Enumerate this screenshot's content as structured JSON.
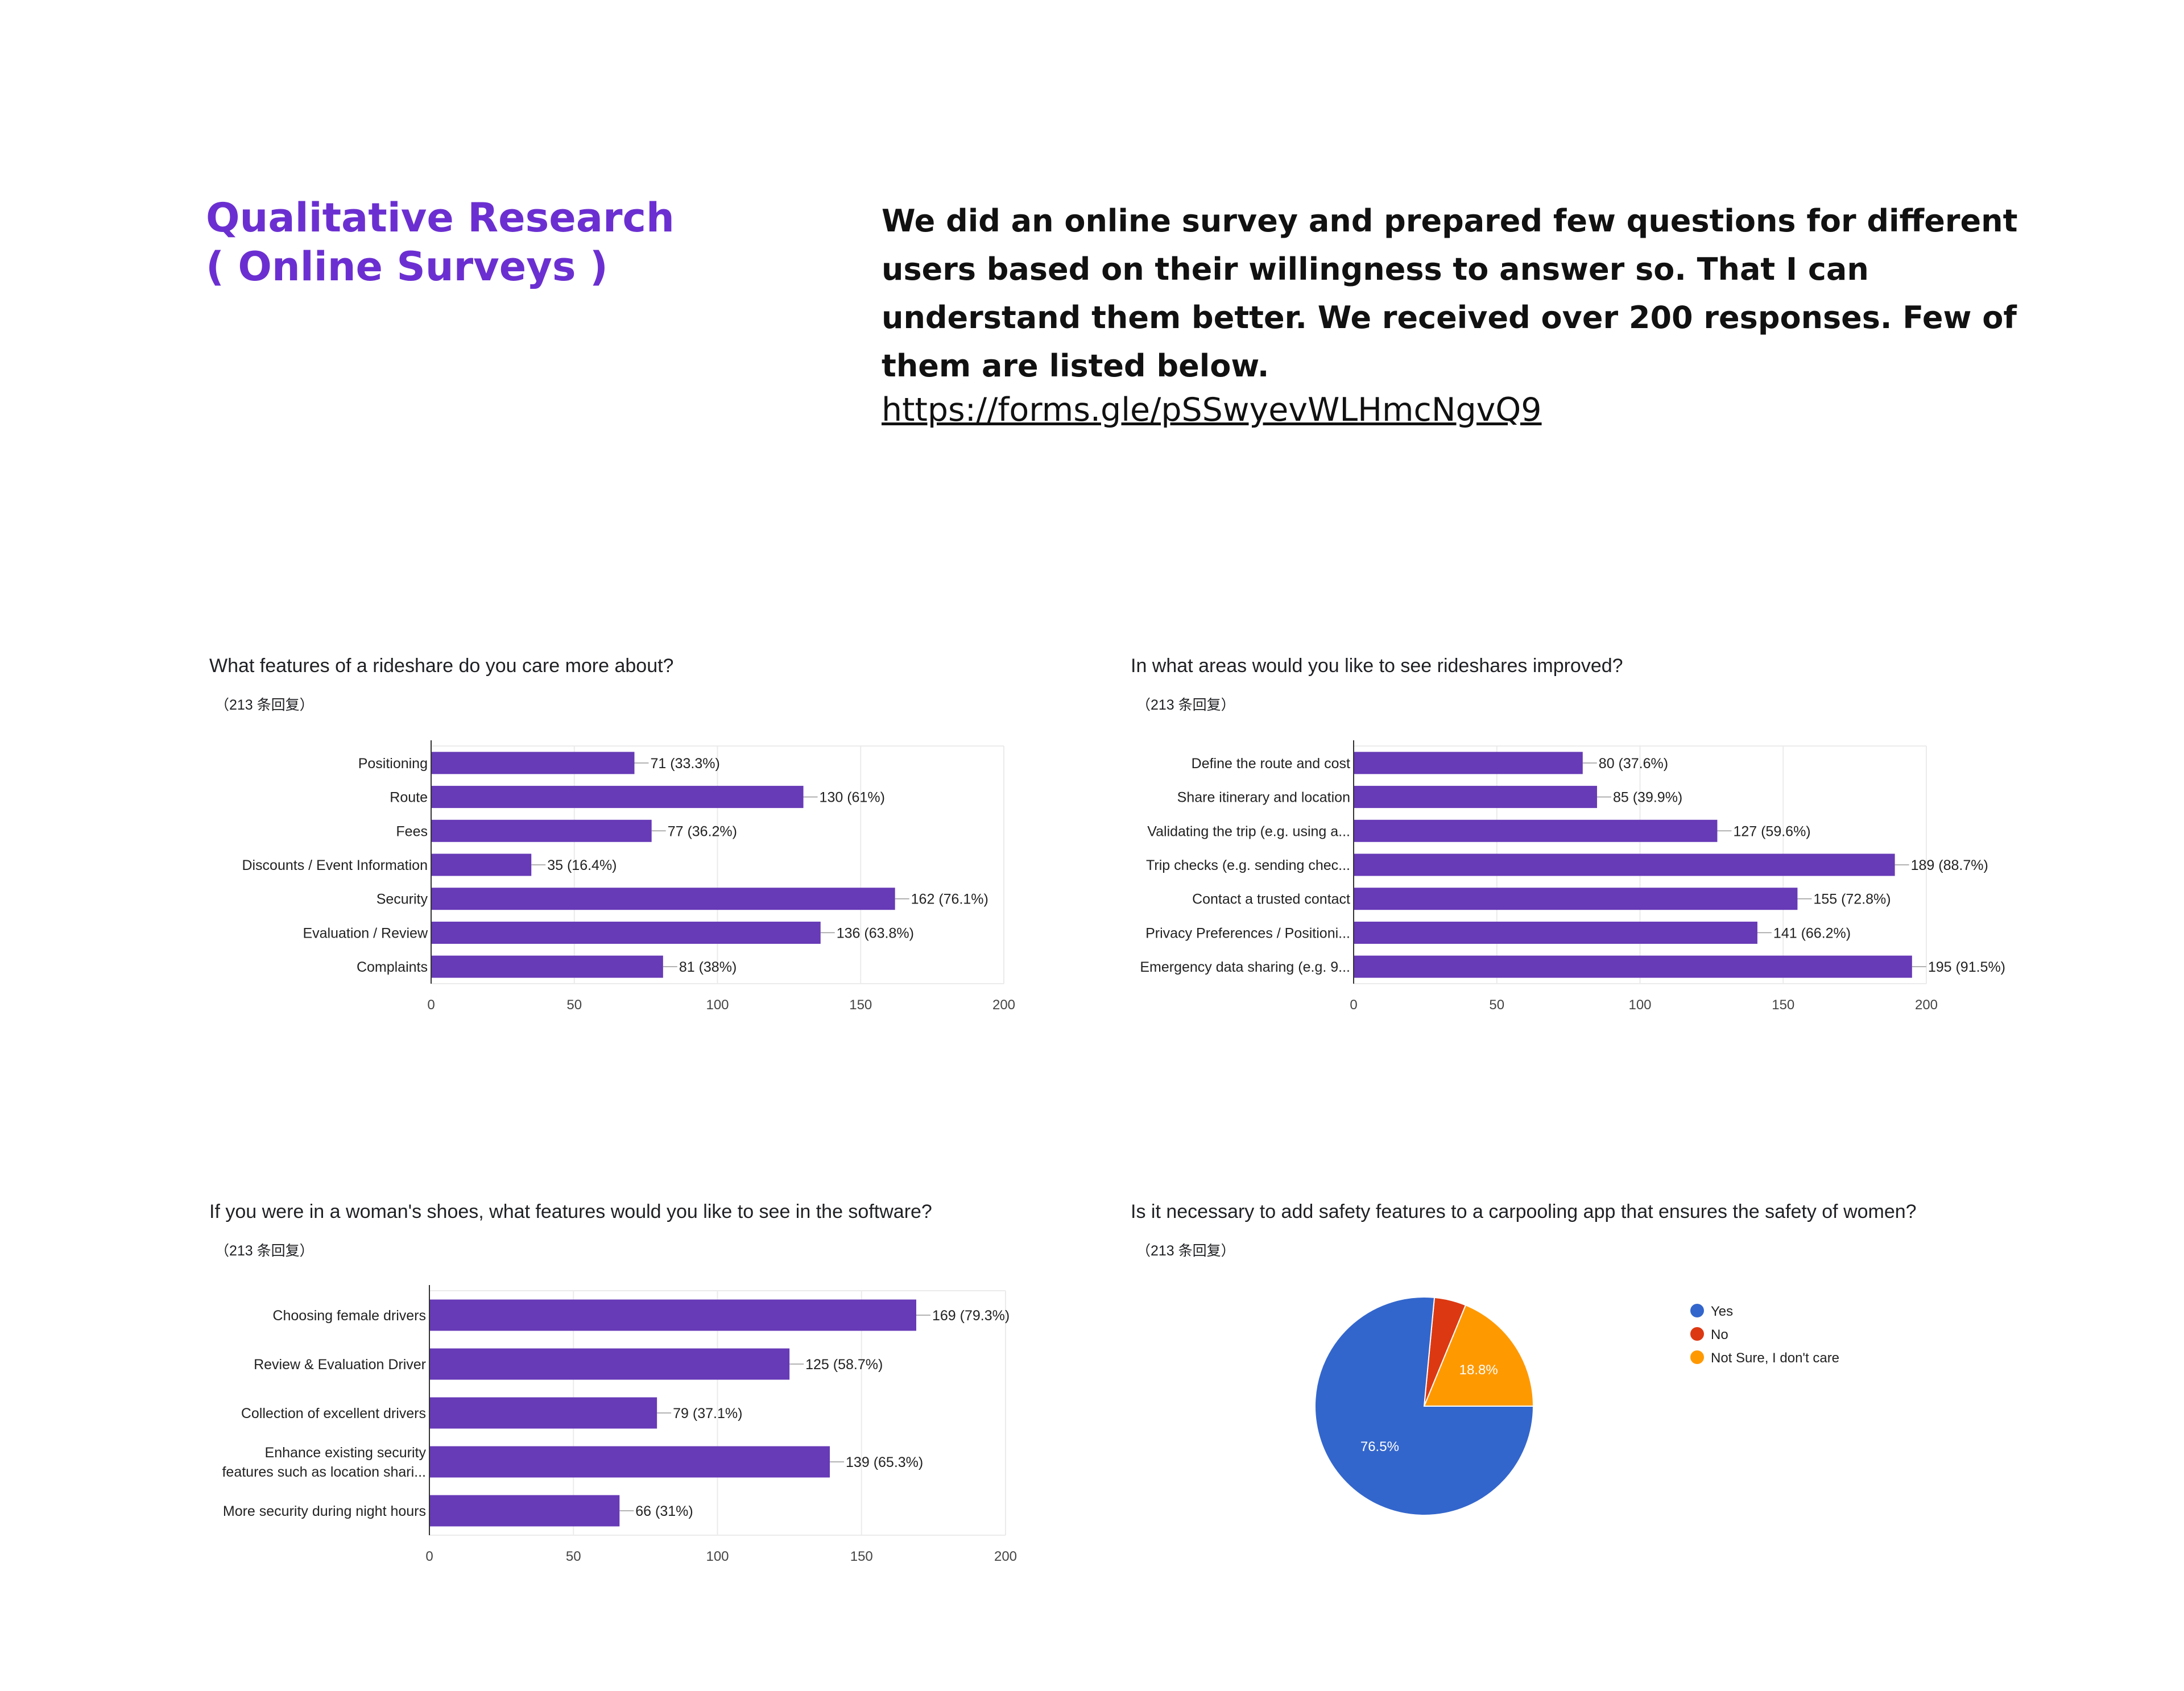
{
  "header": {
    "title_line1": "Qualitative Research",
    "title_line2": "( Online Surveys )",
    "intro": "We did an online survey and prepared few questions for different users based on their willingness to answer so. That I can understand them better. We received over 200 responses. Few of them are listed below.",
    "link": "https://forms.gle/pSSwyevWLHmcNgvQ9"
  },
  "colors": {
    "title": "#6B2FD1",
    "bar": "#673AB7",
    "pie_yes": "#3366CC",
    "pie_no": "#DC3912",
    "pie_not_sure": "#FF9900"
  },
  "chart_data": [
    {
      "type": "bar",
      "question": "What features of a rideshare do you care more about?",
      "responses": "（213 条回复）",
      "categories": [
        "Positioning",
        "Route",
        "Fees",
        "Discounts / Event Information",
        "Security",
        "Evaluation / Review",
        "Complaints"
      ],
      "values": [
        71,
        130,
        77,
        35,
        162,
        136,
        81
      ],
      "value_labels": [
        "71 (33.3%)",
        "130 (61%)",
        "77 (36.2%)",
        "35 (16.4%)",
        "162 (76.1%)",
        "136 (63.8%)",
        "81 (38%)"
      ],
      "xlim": [
        0,
        200
      ],
      "xticks": [
        "0",
        "50",
        "100",
        "150",
        "200"
      ],
      "grid": true
    },
    {
      "type": "bar",
      "question": "In what areas would you like to see rideshares improved?",
      "responses": "（213 条回复）",
      "categories": [
        "Define the route and cost",
        "Share itinerary and location",
        "Validating the trip (e.g. using a...",
        "Trip checks (e.g. sending chec...",
        "Contact a trusted contact",
        "Privacy Preferences / Positioni...",
        "Emergency data sharing (e.g. 9..."
      ],
      "values": [
        80,
        85,
        127,
        189,
        155,
        141,
        195
      ],
      "value_labels": [
        "80 (37.6%)",
        "85 (39.9%)",
        "127 (59.6%)",
        "189 (88.7%)",
        "155 (72.8%)",
        "141 (66.2%)",
        "195 (91.5%)"
      ],
      "xlim": [
        0,
        200
      ],
      "xticks": [
        "0",
        "50",
        "100",
        "150",
        "200"
      ],
      "grid": true
    },
    {
      "type": "bar",
      "question": "If you were in a woman's shoes, what features would you like to see in the software?",
      "responses": "（213 条回复）",
      "categories": [
        "Choosing female drivers",
        "Review & Evaluation Driver",
        "Collection of excellent drivers",
        "Enhance existing security|features such as location shari...",
        "More security during night hours"
      ],
      "values": [
        169,
        125,
        79,
        139,
        66
      ],
      "value_labels": [
        "169 (79.3%)",
        "125 (58.7%)",
        "79 (37.1%)",
        "139 (65.3%)",
        "66 (31%)"
      ],
      "xlim": [
        0,
        200
      ],
      "xticks": [
        "0",
        "50",
        "100",
        "150",
        "200"
      ],
      "grid": true
    },
    {
      "type": "pie",
      "question": "Is it necessary to add safety features to a carpooling app that ensures the safety of women?",
      "responses": "（213 条回复）",
      "categories": [
        "Yes",
        "No",
        "Not Sure, I don't care"
      ],
      "values": [
        76.5,
        4.7,
        18.8
      ],
      "slice_labels": [
        "76.5%",
        "",
        "18.8%"
      ],
      "legend": "right"
    }
  ]
}
